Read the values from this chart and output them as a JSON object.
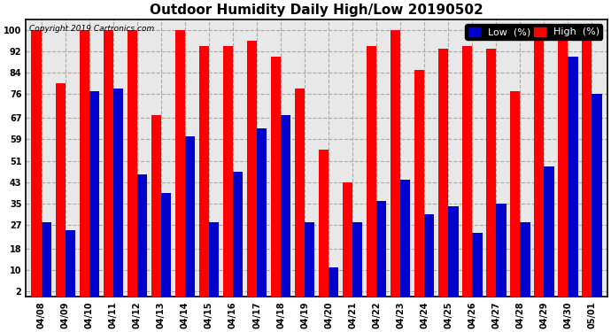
{
  "title": "Outdoor Humidity Daily High/Low 20190502",
  "copyright": "Copyright 2019 Cartronics.com",
  "dates": [
    "04/08",
    "04/09",
    "04/10",
    "04/11",
    "04/12",
    "04/13",
    "04/14",
    "04/15",
    "04/16",
    "04/17",
    "04/18",
    "04/19",
    "04/20",
    "04/21",
    "04/22",
    "04/23",
    "04/24",
    "04/25",
    "04/26",
    "04/27",
    "04/28",
    "04/29",
    "04/30",
    "05/01"
  ],
  "high": [
    100,
    80,
    100,
    100,
    100,
    68,
    100,
    94,
    94,
    96,
    90,
    78,
    55,
    43,
    94,
    100,
    85,
    93,
    94,
    93,
    77,
    100,
    100,
    100
  ],
  "low": [
    28,
    25,
    77,
    78,
    46,
    39,
    60,
    28,
    47,
    63,
    68,
    28,
    11,
    28,
    36,
    44,
    31,
    34,
    24,
    35,
    28,
    49,
    90,
    76
  ],
  "yticks": [
    2,
    10,
    18,
    27,
    35,
    43,
    51,
    59,
    67,
    76,
    84,
    92,
    100
  ],
  "ylim": [
    0,
    104
  ],
  "bar_width": 0.42,
  "high_color": "#ff0000",
  "low_color": "#0000cc",
  "bg_color": "#ffffff",
  "plot_bg_color": "#e8e8e8",
  "grid_color": "#aaaaaa",
  "title_fontsize": 11,
  "tick_fontsize": 7,
  "legend_fontsize": 8
}
